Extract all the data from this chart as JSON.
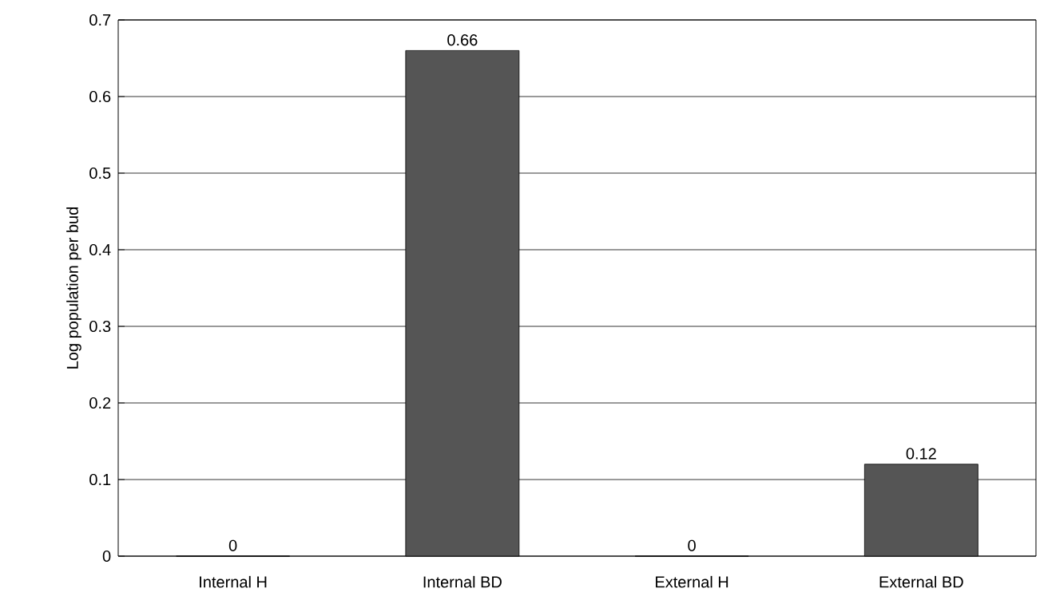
{
  "chart_data": {
    "type": "bar",
    "ylabel": "Log population per bud",
    "categories": [
      "Internal H",
      "Internal BD",
      "External H",
      "External BD"
    ],
    "values": [
      0,
      0.66,
      0,
      0.12
    ],
    "color": "#555555",
    "ylim": [
      0,
      0.7
    ],
    "yticks": [
      0,
      0.1,
      0.2,
      0.3,
      0.4,
      0.5,
      0.6,
      0.7
    ],
    "grid": "y",
    "data_labels": true
  }
}
